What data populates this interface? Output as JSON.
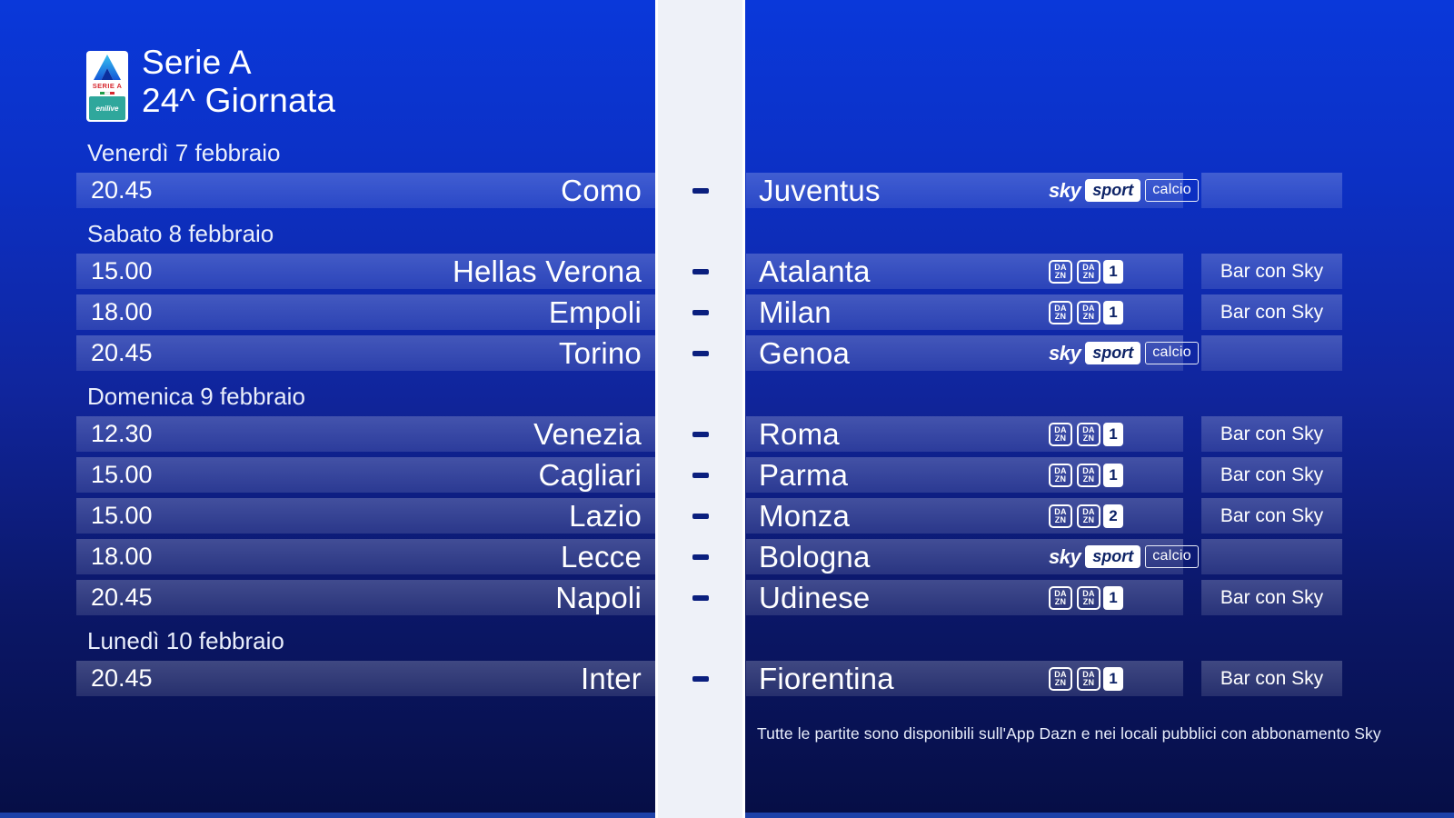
{
  "header": {
    "logo": {
      "wordmark": "SERIE A",
      "brand": "enilive"
    },
    "title_line1": "Serie A",
    "title_line2": "24^ Giornata"
  },
  "labels": {
    "bar_con_sky": "Bar con Sky"
  },
  "broadcasters": {
    "sky": {
      "sky": "sky",
      "sport": "sport",
      "calcio": "calcio"
    },
    "dazn": {
      "lines": [
        "DA",
        "ZN"
      ]
    }
  },
  "days": [
    {
      "label": "Venerdì 7 febbraio",
      "matches": [
        {
          "time": "20.45",
          "home": "Como",
          "away": "Juventus",
          "broadcaster": {
            "type": "sky"
          },
          "bar": false
        }
      ]
    },
    {
      "label": "Sabato 8 febbraio",
      "matches": [
        {
          "time": "15.00",
          "home": "Hellas Verona",
          "away": "Atalanta",
          "broadcaster": {
            "type": "dazn",
            "channel": "1"
          },
          "bar": true
        },
        {
          "time": "18.00",
          "home": "Empoli",
          "away": "Milan",
          "broadcaster": {
            "type": "dazn",
            "channel": "1"
          },
          "bar": true
        },
        {
          "time": "20.45",
          "home": "Torino",
          "away": "Genoa",
          "broadcaster": {
            "type": "sky"
          },
          "bar": false
        }
      ]
    },
    {
      "label": "Domenica 9 febbraio",
      "matches": [
        {
          "time": "12.30",
          "home": "Venezia",
          "away": "Roma",
          "broadcaster": {
            "type": "dazn",
            "channel": "1"
          },
          "bar": true
        },
        {
          "time": "15.00",
          "home": "Cagliari",
          "away": "Parma",
          "broadcaster": {
            "type": "dazn",
            "channel": "1"
          },
          "bar": true
        },
        {
          "time": "15.00",
          "home": "Lazio",
          "away": "Monza",
          "broadcaster": {
            "type": "dazn",
            "channel": "2"
          },
          "bar": true
        },
        {
          "time": "18.00",
          "home": "Lecce",
          "away": "Bologna",
          "broadcaster": {
            "type": "sky"
          },
          "bar": false
        },
        {
          "time": "20.45",
          "home": "Napoli",
          "away": "Udinese",
          "broadcaster": {
            "type": "dazn",
            "channel": "1"
          },
          "bar": true
        }
      ]
    },
    {
      "label": "Lunedì 10 febbraio",
      "matches": [
        {
          "time": "20.45",
          "home": "Inter",
          "away": "Fiorentina",
          "broadcaster": {
            "type": "dazn",
            "channel": "1"
          },
          "bar": true
        }
      ]
    }
  ],
  "footer": {
    "note": "Tutte le partite sono disponibili sull'App Dazn e nei locali pubblici con abbonamento Sky"
  },
  "colors": {
    "bg_top": "#0a38da",
    "bg_bottom": "#060e45",
    "band": "#eef1f8",
    "band_edge": "#ffffff",
    "dash": "#0a1f7e",
    "row_overlay_top": "rgba(255,255,255,0.22)",
    "row_overlay_bottom": "rgba(255,255,255,0.12)",
    "sky_navy": "#0d2366",
    "serie_a_red": "#d7282f",
    "enilive_teal": "#2fa79c",
    "bottom_strip": "#1d41a8"
  }
}
